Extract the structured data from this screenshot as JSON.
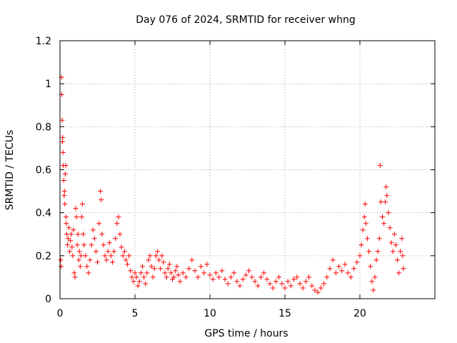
{
  "chart_data": {
    "type": "scatter",
    "title": "Day 076 of 2024, SRMTID for receiver whng",
    "xlabel": "GPS time / hours",
    "ylabel": "SRMTID / TECUs",
    "xlim": [
      0,
      25
    ],
    "ylim": [
      0,
      1.2
    ],
    "x_ticks": [
      0,
      5,
      10,
      15,
      20
    ],
    "x_tick_labels": [
      "0",
      "5",
      "10",
      "15",
      "20"
    ],
    "y_ticks": [
      0,
      0.2,
      0.4,
      0.6,
      0.8,
      1.0,
      1.2
    ],
    "y_tick_labels": [
      "0",
      "0.2",
      "0.4",
      "0.6",
      "0.8",
      "1",
      "1.2"
    ],
    "grid": true,
    "marker": "+",
    "colors": {
      "points": "#ff0000",
      "grid": "#a0a0a0",
      "axis": "#000000"
    },
    "series": [
      {
        "name": "SRMTID",
        "points": [
          [
            0.05,
            0.18
          ],
          [
            0.08,
            0.15
          ],
          [
            0.1,
            1.03
          ],
          [
            0.12,
            0.95
          ],
          [
            0.14,
            0.83
          ],
          [
            0.16,
            0.73
          ],
          [
            0.18,
            0.75
          ],
          [
            0.2,
            0.68
          ],
          [
            0.22,
            0.62
          ],
          [
            0.25,
            0.55
          ],
          [
            0.28,
            0.48
          ],
          [
            0.3,
            0.5
          ],
          [
            0.32,
            0.44
          ],
          [
            0.35,
            0.58
          ],
          [
            0.38,
            0.62
          ],
          [
            0.4,
            0.38
          ],
          [
            0.42,
            0.35
          ],
          [
            0.45,
            0.3
          ],
          [
            0.5,
            0.25
          ],
          [
            0.55,
            0.28
          ],
          [
            0.6,
            0.33
          ],
          [
            0.65,
            0.22
          ],
          [
            0.7,
            0.27
          ],
          [
            0.75,
            0.3
          ],
          [
            0.8,
            0.24
          ],
          [
            0.85,
            0.2
          ],
          [
            0.9,
            0.32
          ],
          [
            0.95,
            0.12
          ],
          [
            1.0,
            0.1
          ],
          [
            1.05,
            0.42
          ],
          [
            1.1,
            0.38
          ],
          [
            1.15,
            0.25
          ],
          [
            1.2,
            0.3
          ],
          [
            1.25,
            0.18
          ],
          [
            1.3,
            0.22
          ],
          [
            1.35,
            0.15
          ],
          [
            1.4,
            0.2
          ],
          [
            1.45,
            0.38
          ],
          [
            1.5,
            0.44
          ],
          [
            1.55,
            0.3
          ],
          [
            1.6,
            0.25
          ],
          [
            1.7,
            0.2
          ],
          [
            1.8,
            0.15
          ],
          [
            1.9,
            0.12
          ],
          [
            2.0,
            0.18
          ],
          [
            2.1,
            0.25
          ],
          [
            2.2,
            0.32
          ],
          [
            2.3,
            0.28
          ],
          [
            2.4,
            0.22
          ],
          [
            2.5,
            0.17
          ],
          [
            2.6,
            0.35
          ],
          [
            2.7,
            0.5
          ],
          [
            2.75,
            0.46
          ],
          [
            2.8,
            0.3
          ],
          [
            2.9,
            0.25
          ],
          [
            3.0,
            0.2
          ],
          [
            3.1,
            0.18
          ],
          [
            3.2,
            0.22
          ],
          [
            3.3,
            0.26
          ],
          [
            3.4,
            0.2
          ],
          [
            3.5,
            0.17
          ],
          [
            3.6,
            0.22
          ],
          [
            3.7,
            0.28
          ],
          [
            3.8,
            0.35
          ],
          [
            3.9,
            0.38
          ],
          [
            4.0,
            0.3
          ],
          [
            4.1,
            0.24
          ],
          [
            4.2,
            0.2
          ],
          [
            4.3,
            0.22
          ],
          [
            4.4,
            0.18
          ],
          [
            4.5,
            0.16
          ],
          [
            4.6,
            0.2
          ],
          [
            4.7,
            0.13
          ],
          [
            4.8,
            0.1
          ],
          [
            4.9,
            0.08
          ],
          [
            5.0,
            0.12
          ],
          [
            5.1,
            0.1
          ],
          [
            5.2,
            0.06
          ],
          [
            5.3,
            0.08
          ],
          [
            5.4,
            0.12
          ],
          [
            5.5,
            0.15
          ],
          [
            5.6,
            0.1
          ],
          [
            5.7,
            0.07
          ],
          [
            5.8,
            0.12
          ],
          [
            5.9,
            0.18
          ],
          [
            6.0,
            0.2
          ],
          [
            6.1,
            0.15
          ],
          [
            6.2,
            0.1
          ],
          [
            6.3,
            0.14
          ],
          [
            6.4,
            0.2
          ],
          [
            6.5,
            0.22
          ],
          [
            6.6,
            0.18
          ],
          [
            6.7,
            0.14
          ],
          [
            6.8,
            0.2
          ],
          [
            6.9,
            0.17
          ],
          [
            7.0,
            0.12
          ],
          [
            7.1,
            0.1
          ],
          [
            7.2,
            0.14
          ],
          [
            7.3,
            0.16
          ],
          [
            7.4,
            0.12
          ],
          [
            7.5,
            0.09
          ],
          [
            7.6,
            0.1
          ],
          [
            7.7,
            0.13
          ],
          [
            7.8,
            0.15
          ],
          [
            7.9,
            0.11
          ],
          [
            8.0,
            0.08
          ],
          [
            8.2,
            0.12
          ],
          [
            8.4,
            0.1
          ],
          [
            8.6,
            0.14
          ],
          [
            8.8,
            0.18
          ],
          [
            9.0,
            0.13
          ],
          [
            9.2,
            0.1
          ],
          [
            9.4,
            0.15
          ],
          [
            9.6,
            0.12
          ],
          [
            9.8,
            0.16
          ],
          [
            10.0,
            0.11
          ],
          [
            10.2,
            0.09
          ],
          [
            10.4,
            0.12
          ],
          [
            10.6,
            0.1
          ],
          [
            10.8,
            0.13
          ],
          [
            11.0,
            0.09
          ],
          [
            11.2,
            0.07
          ],
          [
            11.4,
            0.1
          ],
          [
            11.6,
            0.12
          ],
          [
            11.8,
            0.08
          ],
          [
            12.0,
            0.06
          ],
          [
            12.2,
            0.09
          ],
          [
            12.4,
            0.11
          ],
          [
            12.6,
            0.13
          ],
          [
            12.8,
            0.1
          ],
          [
            13.0,
            0.08
          ],
          [
            13.2,
            0.06
          ],
          [
            13.4,
            0.1
          ],
          [
            13.6,
            0.12
          ],
          [
            13.8,
            0.09
          ],
          [
            14.0,
            0.07
          ],
          [
            14.2,
            0.05
          ],
          [
            14.4,
            0.08
          ],
          [
            14.6,
            0.1
          ],
          [
            14.8,
            0.07
          ],
          [
            15.0,
            0.05
          ],
          [
            15.2,
            0.08
          ],
          [
            15.4,
            0.06
          ],
          [
            15.6,
            0.09
          ],
          [
            15.8,
            0.1
          ],
          [
            16.0,
            0.07
          ],
          [
            16.2,
            0.05
          ],
          [
            16.4,
            0.08
          ],
          [
            16.6,
            0.1
          ],
          [
            16.8,
            0.06
          ],
          [
            17.0,
            0.04
          ],
          [
            17.2,
            0.03
          ],
          [
            17.4,
            0.05
          ],
          [
            17.6,
            0.07
          ],
          [
            17.8,
            0.1
          ],
          [
            18.0,
            0.14
          ],
          [
            18.2,
            0.18
          ],
          [
            18.4,
            0.12
          ],
          [
            18.6,
            0.15
          ],
          [
            18.8,
            0.13
          ],
          [
            19.0,
            0.16
          ],
          [
            19.2,
            0.12
          ],
          [
            19.4,
            0.1
          ],
          [
            19.6,
            0.14
          ],
          [
            19.8,
            0.17
          ],
          [
            20.0,
            0.2
          ],
          [
            20.1,
            0.25
          ],
          [
            20.2,
            0.32
          ],
          [
            20.3,
            0.38
          ],
          [
            20.35,
            0.44
          ],
          [
            20.4,
            0.35
          ],
          [
            20.5,
            0.28
          ],
          [
            20.6,
            0.22
          ],
          [
            20.7,
            0.15
          ],
          [
            20.8,
            0.08
          ],
          [
            20.9,
            0.04
          ],
          [
            21.0,
            0.1
          ],
          [
            21.1,
            0.18
          ],
          [
            21.2,
            0.22
          ],
          [
            21.3,
            0.28
          ],
          [
            21.35,
            0.62
          ],
          [
            21.4,
            0.45
          ],
          [
            21.5,
            0.38
          ],
          [
            21.6,
            0.35
          ],
          [
            21.7,
            0.45
          ],
          [
            21.75,
            0.52
          ],
          [
            21.8,
            0.48
          ],
          [
            21.9,
            0.4
          ],
          [
            22.0,
            0.33
          ],
          [
            22.1,
            0.26
          ],
          [
            22.2,
            0.22
          ],
          [
            22.3,
            0.3
          ],
          [
            22.4,
            0.25
          ],
          [
            22.5,
            0.18
          ],
          [
            22.6,
            0.12
          ],
          [
            22.7,
            0.22
          ],
          [
            22.8,
            0.28
          ],
          [
            22.85,
            0.2
          ],
          [
            22.9,
            0.14
          ]
        ]
      }
    ]
  }
}
